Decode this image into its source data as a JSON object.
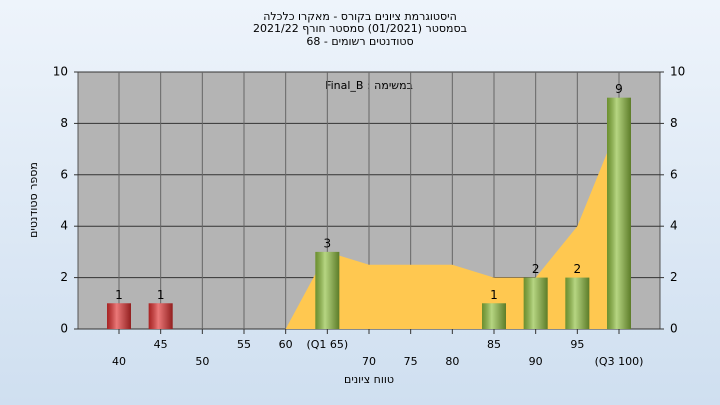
{
  "chart_data": {
    "type": "bar",
    "title": [
      "היסטוגרמת ציונים בקורס - מאקרו כלכלה",
      "בסמסטר  (01/2021)  סמסטר חורף 2021/22",
      "סטודנטים רשומים - 68"
    ],
    "annotation": "Final_B : במשימה",
    "xlabel": "טווח ציונים",
    "ylabel": "מספר סטודנטים",
    "categories": [
      "40",
      "45",
      "50",
      "55",
      "60",
      "(Q1 65)",
      "70",
      "75",
      "80",
      "85",
      "90",
      "95",
      "(Q3 100)"
    ],
    "values": [
      1,
      1,
      0,
      0,
      0,
      3,
      0,
      0,
      0,
      1,
      2,
      2,
      9
    ],
    "colors": [
      "#e03030",
      "#e03030",
      "#8fbf3f",
      "#8fbf3f",
      "#8fbf3f",
      "#8fbf3f",
      "#8fbf3f",
      "#8fbf3f",
      "#8fbf3f",
      "#8fbf3f",
      "#8fbf3f",
      "#8fbf3f",
      "#8fbf3f"
    ],
    "area": {
      "color": "#ffc850",
      "values": [
        null,
        null,
        null,
        null,
        0,
        3,
        2.5,
        2.5,
        2.5,
        2,
        2,
        4,
        8
      ]
    },
    "ylim": [
      0,
      10
    ],
    "yticks": [
      0,
      2,
      4,
      6,
      8,
      10
    ],
    "y2lim": [
      0,
      10
    ],
    "y2ticks": [
      0,
      2,
      4,
      6,
      8,
      10
    ],
    "grid": true
  }
}
